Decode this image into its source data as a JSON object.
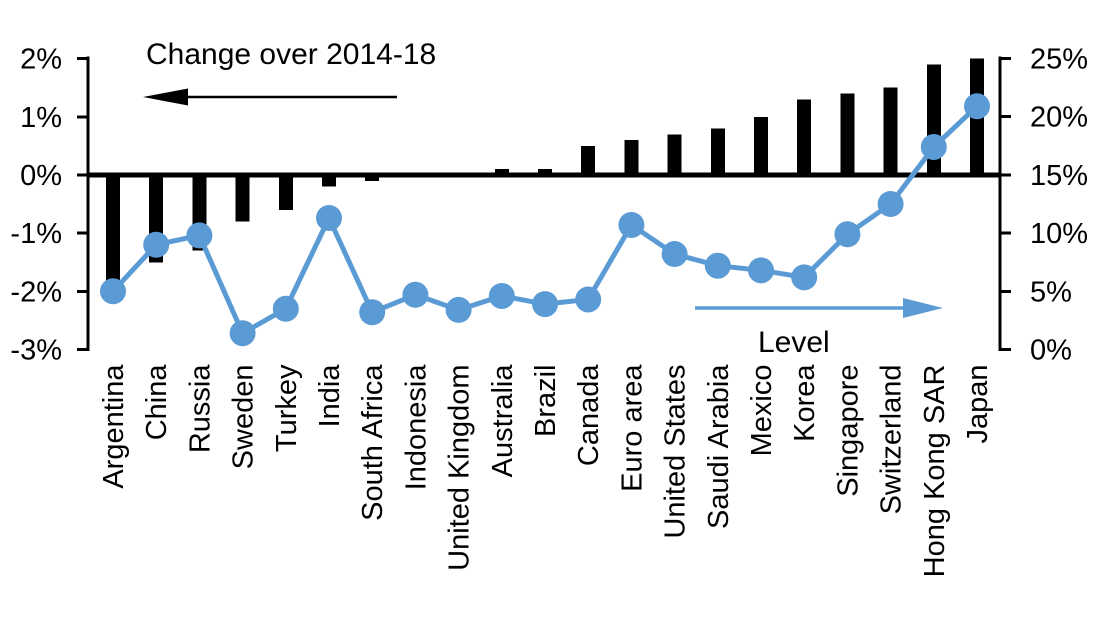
{
  "chart_data": {
    "type": "combo-bar-line-dual-axis",
    "categories": [
      "Argentina",
      "China",
      "Russia",
      "Sweden",
      "Turkey",
      "India",
      "South Africa",
      "Indonesia",
      "United Kingdom",
      "Australia",
      "Brazil",
      "Canada",
      "Euro area",
      "United States",
      "Saudi Arabia",
      "Mexico",
      "Korea",
      "Singapore",
      "Switzerland",
      "Hong Kong SAR",
      "Japan"
    ],
    "series": [
      {
        "name": "Change over 2014-18",
        "type": "bar",
        "axis": "left",
        "unit": "percentage points",
        "color": "#000000",
        "values": [
          -1.9,
          -1.5,
          -1.3,
          -0.8,
          -0.6,
          -0.2,
          -0.1,
          0,
          0,
          0.1,
          0.1,
          0.5,
          0.6,
          0.7,
          0.8,
          1.0,
          1.3,
          1.4,
          1.5,
          1.9,
          2.0
        ]
      },
      {
        "name": "Level",
        "type": "line",
        "axis": "right",
        "unit": "%",
        "color": "#5B9BD5",
        "values": [
          5.0,
          9.0,
          9.8,
          1.4,
          3.5,
          11.3,
          3.2,
          4.7,
          3.4,
          4.6,
          3.9,
          4.3,
          10.7,
          8.2,
          7.2,
          6.8,
          6.2,
          9.9,
          12.5,
          17.4,
          20.9
        ]
      }
    ],
    "left_axis": {
      "tick_labels": [
        "2%",
        "1%",
        "0%",
        "-1%",
        "-2%",
        "-3%"
      ],
      "tick_values": [
        2,
        1,
        0,
        -1,
        -2,
        -3
      ],
      "range": [
        -3,
        2
      ]
    },
    "right_axis": {
      "tick_labels": [
        "25%",
        "20%",
        "15%",
        "10%",
        "5%",
        "0%"
      ],
      "tick_values": [
        25,
        20,
        15,
        10,
        5,
        0
      ],
      "range": [
        0,
        25
      ]
    },
    "annotations": {
      "change_label": "Change over 2014-18",
      "change_arrow_direction": "left",
      "level_label": "Level",
      "level_arrow_direction": "right"
    },
    "grid": false,
    "background": "#ffffff"
  }
}
